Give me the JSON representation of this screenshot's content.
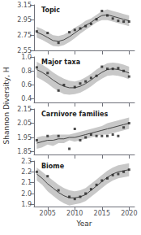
{
  "chart_data": {
    "type": "line",
    "xlabel": "Year",
    "ylabel": "Shannon Diversity, H",
    "xlim": [
      2002.5,
      2021
    ],
    "xticks": [
      2005,
      2010,
      2015,
      2020
    ],
    "grid": false,
    "panels": [
      {
        "title": "Topic",
        "ylim": [
          2.55,
          3.15
        ],
        "yticks": [
          2.55,
          2.75,
          2.95,
          3.15
        ],
        "tick_labels": "y",
        "series": [
          {
            "type": "band",
            "color": "#c8c8c8",
            "x": [
              2003,
              2004,
              2005,
              2006,
              2007,
              2008,
              2009,
              2010,
              2011,
              2012,
              2013,
              2014,
              2015,
              2016,
              2017,
              2018,
              2019,
              2020
            ],
            "lower": [
              2.72,
              2.69,
              2.65,
              2.61,
              2.6,
              2.62,
              2.66,
              2.71,
              2.77,
              2.82,
              2.87,
              2.92,
              2.95,
              2.95,
              2.93,
              2.91,
              2.89,
              2.87
            ],
            "upper": [
              2.86,
              2.83,
              2.79,
              2.75,
              2.74,
              2.76,
              2.8,
              2.85,
              2.89,
              2.94,
              2.97,
              3.02,
              3.07,
              3.09,
              3.07,
              3.05,
              3.03,
              3.01
            ]
          },
          {
            "type": "line",
            "color": "#444444",
            "x": [
              2003,
              2004,
              2005,
              2006,
              2007,
              2008,
              2009,
              2010,
              2011,
              2012,
              2013,
              2014,
              2015,
              2016,
              2017,
              2018,
              2019,
              2020
            ],
            "values": [
              2.79,
              2.76,
              2.72,
              2.68,
              2.67,
              2.69,
              2.73,
              2.78,
              2.83,
              2.88,
              2.92,
              2.97,
              3.01,
              3.02,
              3.0,
              2.98,
              2.96,
              2.94
            ]
          },
          {
            "type": "scatter",
            "marker": "square",
            "color": "#222222",
            "x": [
              2003,
              2005,
              2007,
              2009,
              2010,
              2011,
              2012,
              2013,
              2014,
              2015,
              2016,
              2017,
              2018,
              2019,
              2020
            ],
            "values": [
              2.8,
              2.78,
              2.65,
              2.79,
              2.82,
              2.84,
              2.87,
              2.9,
              2.96,
              3.07,
              3.01,
              2.97,
              2.94,
              2.93,
              2.93
            ]
          }
        ]
      },
      {
        "title": "Major taxa",
        "ylim": [
          0.35,
          1.0
        ],
        "yticks": [
          0.4,
          0.6,
          0.8,
          {
            "value": 1.0,
            "label": "1.0"
          }
        ],
        "tick_labels": "y",
        "series": [
          {
            "type": "band",
            "color": "#c8c8c8",
            "x": [
              2003,
              2004,
              2005,
              2006,
              2007,
              2008,
              2009,
              2010,
              2011,
              2012,
              2013,
              2014,
              2015,
              2016,
              2017,
              2018,
              2019,
              2020
            ],
            "lower": [
              0.71,
              0.67,
              0.62,
              0.56,
              0.51,
              0.47,
              0.46,
              0.47,
              0.49,
              0.53,
              0.58,
              0.64,
              0.69,
              0.73,
              0.74,
              0.73,
              0.71,
              0.68
            ],
            "upper": [
              0.93,
              0.89,
              0.84,
              0.78,
              0.73,
              0.69,
              0.66,
              0.65,
              0.67,
              0.71,
              0.76,
              0.82,
              0.87,
              0.91,
              0.92,
              0.91,
              0.89,
              0.86
            ]
          },
          {
            "type": "line",
            "color": "#444444",
            "x": [
              2003,
              2004,
              2005,
              2006,
              2007,
              2008,
              2009,
              2010,
              2011,
              2012,
              2013,
              2014,
              2015,
              2016,
              2017,
              2018,
              2019,
              2020
            ],
            "values": [
              0.82,
              0.78,
              0.73,
              0.67,
              0.62,
              0.58,
              0.56,
              0.56,
              0.58,
              0.62,
              0.67,
              0.73,
              0.78,
              0.82,
              0.83,
              0.82,
              0.8,
              0.77
            ]
          },
          {
            "type": "scatter",
            "marker": "square",
            "color": "#222222",
            "x": [
              2003,
              2005,
              2007,
              2008,
              2010,
              2011,
              2012,
              2013,
              2014,
              2015,
              2016,
              2017,
              2018,
              2019,
              2020
            ],
            "values": [
              0.85,
              0.77,
              0.52,
              0.6,
              0.57,
              0.62,
              0.65,
              0.7,
              0.73,
              0.86,
              0.83,
              0.83,
              0.84,
              0.8,
              0.72
            ]
          }
        ]
      },
      {
        "title": "Carnivore families",
        "ylim": [
          1.83,
          2.15
        ],
        "yticks": [
          1.85,
          1.95,
          2.05,
          2.15
        ],
        "tick_labels": "y",
        "series": [
          {
            "type": "band",
            "color": "#c8c8c8",
            "x": [
              2003,
              2004,
              2005,
              2006,
              2007,
              2008,
              2009,
              2010,
              2011,
              2012,
              2013,
              2014,
              2015,
              2016,
              2017,
              2018,
              2019,
              2020
            ],
            "lower": [
              1.87,
              1.88,
              1.9,
              1.89,
              1.91,
              1.91,
              1.93,
              1.92,
              1.93,
              1.94,
              1.95,
              1.96,
              1.97,
              1.97,
              1.98,
              1.99,
              2.0,
              2.01
            ],
            "upper": [
              1.95,
              1.96,
              1.96,
              1.97,
              1.97,
              1.97,
              1.97,
              1.98,
              1.99,
              2.0,
              2.01,
              2.02,
              2.03,
              2.05,
              2.06,
              2.07,
              2.08,
              2.09
            ]
          },
          {
            "type": "line",
            "color": "#444444",
            "x": [
              2003,
              2004,
              2005,
              2006,
              2007,
              2008,
              2009,
              2010,
              2011,
              2012,
              2013,
              2014,
              2015,
              2016,
              2017,
              2018,
              2019,
              2020
            ],
            "values": [
              1.91,
              1.92,
              1.93,
              1.93,
              1.94,
              1.94,
              1.95,
              1.95,
              1.96,
              1.97,
              1.98,
              1.99,
              2.0,
              2.01,
              2.02,
              2.03,
              2.04,
              2.05
            ]
          },
          {
            "type": "scatter",
            "marker": "square",
            "color": "#222222",
            "x": [
              2003,
              2005,
              2007,
              2009,
              2010,
              2011,
              2012,
              2013,
              2014,
              2015,
              2016,
              2017,
              2018,
              2019,
              2020
            ],
            "values": [
              1.93,
              1.96,
              1.96,
              1.87,
              2.01,
              1.93,
              1.95,
              1.97,
              1.96,
              1.96,
              1.96,
              1.97,
              1.96,
              2.02,
              2.05
            ]
          }
        ]
      },
      {
        "title": "Biome",
        "ylim": [
          1.88,
          2.3
        ],
        "yticks": [
          1.9,
          {
            "value": 2.0,
            "label": "2.0"
          },
          2.1,
          2.2,
          2.3
        ],
        "series": [
          {
            "type": "band",
            "color": "#c8c8c8",
            "x": [
              2003,
              2004,
              2005,
              2006,
              2007,
              2008,
              2009,
              2010,
              2011,
              2012,
              2013,
              2014,
              2015,
              2016,
              2017,
              2018,
              2019,
              2020
            ],
            "lower": [
              2.12,
              2.08,
              2.02,
              1.98,
              1.94,
              1.91,
              1.89,
              1.9,
              1.91,
              1.93,
              1.97,
              2.01,
              2.05,
              2.09,
              2.12,
              2.14,
              2.15,
              2.16
            ],
            "upper": [
              2.24,
              2.2,
              2.16,
              2.12,
              2.08,
              2.05,
              2.03,
              2.02,
              2.03,
              2.05,
              2.09,
              2.13,
              2.17,
              2.21,
              2.24,
              2.26,
              2.27,
              2.28
            ]
          },
          {
            "type": "line",
            "color": "#444444",
            "x": [
              2003,
              2004,
              2005,
              2006,
              2007,
              2008,
              2009,
              2010,
              2011,
              2012,
              2013,
              2014,
              2015,
              2016,
              2017,
              2018,
              2019,
              2020
            ],
            "values": [
              2.18,
              2.14,
              2.09,
              2.05,
              2.01,
              1.98,
              1.96,
              1.96,
              1.97,
              1.99,
              2.03,
              2.07,
              2.11,
              2.15,
              2.18,
              2.2,
              2.21,
              2.22
            ]
          },
          {
            "type": "scatter",
            "marker": "square",
            "color": "#222222",
            "x": [
              2003,
              2005,
              2007,
              2009,
              2010,
              2011,
              2012,
              2013,
              2014,
              2015,
              2016,
              2017,
              2018,
              2019,
              2020
            ],
            "values": [
              2.2,
              2.16,
              2.03,
              1.97,
              1.95,
              1.97,
              2.0,
              2.04,
              2.08,
              2.12,
              2.14,
              2.17,
              2.18,
              2.2,
              2.22
            ]
          }
        ]
      }
    ]
  }
}
